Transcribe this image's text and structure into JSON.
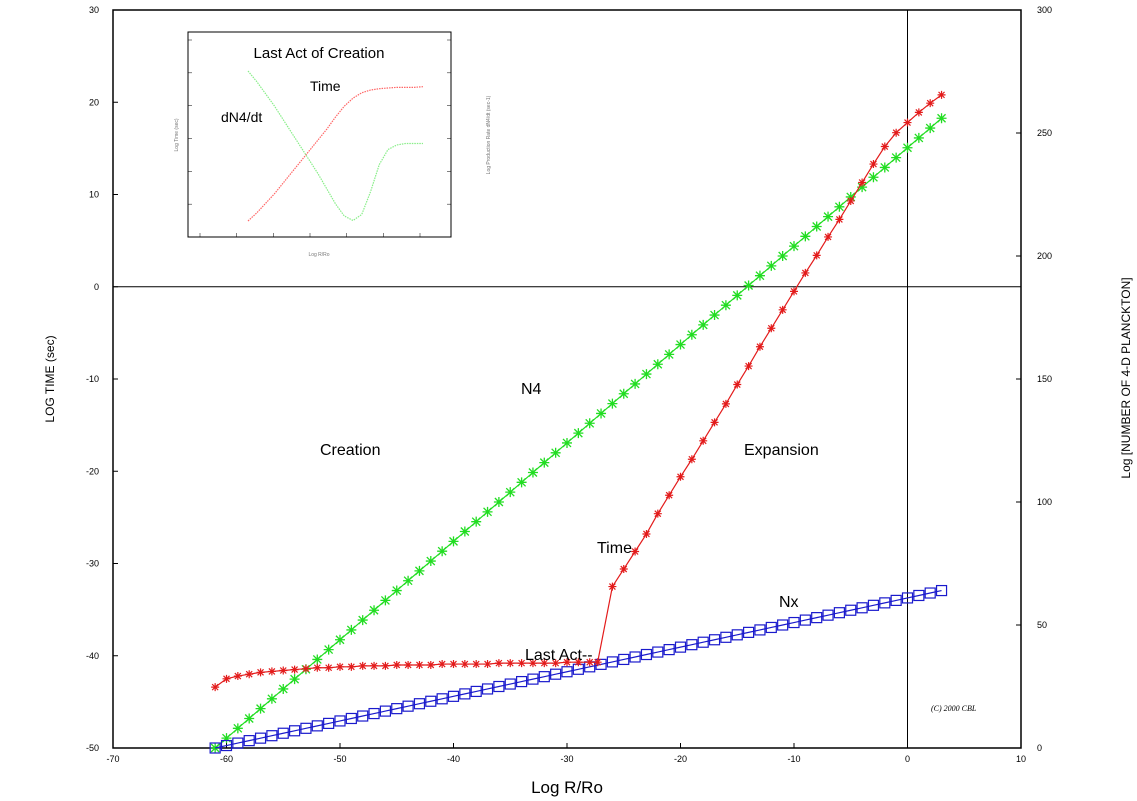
{
  "chart_data": {
    "type": "line",
    "xlabel": "Log R/Ro",
    "ylabel": "LOG TIME (sec)",
    "y2label": "Log [NUMBER OF 4-D PLANCKTON]",
    "xlim": [
      -70,
      10
    ],
    "ylim": [
      -50,
      30
    ],
    "y2lim": [
      0,
      300
    ],
    "xticks": [
      "-70",
      "-60",
      "-50",
      "-40",
      "-30",
      "-20",
      "-10",
      "0",
      "10"
    ],
    "yticks": [
      "-50",
      "-40",
      "-30",
      "-20",
      "-10",
      "0",
      "10",
      "20",
      "30"
    ],
    "y2ticks": [
      "0",
      "50",
      "100",
      "150",
      "200",
      "250",
      "300"
    ],
    "reference_lines": {
      "x": 0,
      "y": 0
    },
    "annotations": {
      "creation": "Creation",
      "expansion": "Expansion",
      "n4": "N4",
      "time": "Time",
      "nx": "Nx",
      "last_act": "Last Act--",
      "copyright": "(C) 2000 CBL"
    },
    "series": [
      {
        "name": "Time",
        "axis": "left",
        "color": "#e31b1b",
        "marker": "asterisk",
        "x": [
          -61,
          -60,
          -59,
          -58,
          -57,
          -56,
          -55,
          -54,
          -53,
          -52,
          -51,
          -50,
          -49,
          -48,
          -47,
          -46,
          -45,
          -44,
          -43,
          -42,
          -41,
          -40,
          -39,
          -38,
          -37,
          -36,
          -35,
          -34,
          -33,
          -32,
          -31,
          -30,
          -29,
          -28,
          -27.3,
          -26,
          -25,
          -24,
          -23,
          -22,
          -21,
          -20,
          -19,
          -18,
          -17,
          -16,
          -15,
          -14,
          -13,
          -12,
          -11,
          -10,
          -9,
          -8,
          -7,
          -6,
          -5,
          -4,
          -3,
          -2,
          -1,
          0,
          1,
          2,
          3
        ],
        "y": [
          -43.4,
          -42.5,
          -42.2,
          -42.0,
          -41.8,
          -41.7,
          -41.6,
          -41.5,
          -41.4,
          -41.3,
          -41.3,
          -41.2,
          -41.2,
          -41.1,
          -41.1,
          -41.1,
          -41.0,
          -41.0,
          -41.0,
          -41.0,
          -40.9,
          -40.9,
          -40.9,
          -40.9,
          -40.9,
          -40.8,
          -40.8,
          -40.8,
          -40.8,
          -40.8,
          -40.8,
          -40.7,
          -40.7,
          -40.7,
          -40.7,
          -32.5,
          -30.6,
          -28.7,
          -26.8,
          -24.6,
          -22.6,
          -20.6,
          -18.7,
          -16.7,
          -14.7,
          -12.7,
          -10.6,
          -8.6,
          -6.5,
          -4.5,
          -2.5,
          -0.5,
          1.5,
          3.4,
          5.4,
          7.3,
          9.3,
          11.3,
          13.3,
          15.2,
          16.7,
          17.8,
          18.9,
          19.9,
          20.8
        ]
      },
      {
        "name": "N4",
        "axis": "right",
        "color": "#22dd22",
        "marker": "cross",
        "x": [
          -61,
          -60,
          -59,
          -58,
          -57,
          -56,
          -55,
          -54,
          -53,
          -52,
          -51,
          -50,
          -49,
          -48,
          -47,
          -46,
          -45,
          -44,
          -43,
          -42,
          -41,
          -40,
          -39,
          -38,
          -37,
          -36,
          -35,
          -34,
          -33,
          -32,
          -31,
          -30,
          -29,
          -28,
          -27,
          -26,
          -25,
          -24,
          -23,
          -22,
          -21,
          -20,
          -19,
          -18,
          -17,
          -16,
          -15,
          -14,
          -13,
          -12,
          -11,
          -10,
          -9,
          -8,
          -7,
          -6,
          -5,
          -4,
          -3,
          -2,
          -1,
          0,
          1,
          2,
          3
        ],
        "y": [
          0.0,
          4.0,
          8.0,
          12.0,
          16.0,
          20.0,
          24.0,
          28.0,
          32.0,
          36.0,
          40.0,
          44.0,
          48.0,
          52.0,
          56.0,
          60.0,
          64.0,
          68.0,
          72.0,
          76.0,
          80.0,
          84.0,
          88.0,
          92.0,
          96.0,
          100.0,
          104.0,
          108.0,
          112.0,
          116.0,
          120.0,
          124.0,
          128.0,
          132.0,
          136.0,
          140.0,
          144.0,
          148.0,
          152.0,
          156.0,
          160.0,
          164.0,
          168.0,
          172.0,
          176.0,
          180.0,
          184.0,
          188.0,
          192.0,
          196.0,
          200.0,
          204.0,
          208.0,
          212.0,
          216.0,
          220.0,
          224.0,
          228.0,
          232.0,
          236.0,
          240.0,
          244.0,
          248.0,
          252.0,
          256.0
        ]
      },
      {
        "name": "Nx",
        "axis": "right",
        "color": "#1a1acc",
        "marker": "square",
        "x": [
          -61,
          -60,
          -59,
          -58,
          -57,
          -56,
          -55,
          -54,
          -53,
          -52,
          -51,
          -50,
          -49,
          -48,
          -47,
          -46,
          -45,
          -44,
          -43,
          -42,
          -41,
          -40,
          -39,
          -38,
          -37,
          -36,
          -35,
          -34,
          -33,
          -32,
          -31,
          -30,
          -29,
          -28,
          -27,
          -26,
          -25,
          -24,
          -23,
          -22,
          -21,
          -20,
          -19,
          -18,
          -17,
          -16,
          -15,
          -14,
          -13,
          -12,
          -11,
          -10,
          -9,
          -8,
          -7,
          -6,
          -5,
          -4,
          -3,
          -2,
          -1,
          0,
          1,
          2,
          3
        ],
        "y": [
          0.0,
          1.0,
          2.0,
          3.0,
          4.0,
          5.0,
          6.0,
          7.0,
          8.0,
          9.0,
          10.0,
          11.0,
          12.0,
          13.0,
          14.0,
          15.0,
          16.0,
          17.0,
          18.0,
          19.0,
          20.0,
          21.0,
          22.0,
          23.0,
          24.0,
          25.0,
          26.0,
          27.0,
          28.0,
          29.0,
          30.0,
          31.0,
          32.0,
          33.0,
          34.0,
          35.0,
          36.0,
          37.0,
          38.0,
          39.0,
          40.0,
          41.0,
          42.0,
          43.0,
          44.0,
          45.0,
          46.0,
          47.0,
          48.0,
          49.0,
          50.0,
          51.0,
          52.0,
          53.0,
          54.0,
          55.0,
          56.0,
          57.0,
          58.0,
          59.0,
          60.0,
          61.0,
          62.0,
          63.0,
          64.0
        ]
      }
    ],
    "inset": {
      "title": "Last Act of Creation",
      "time_label": "Time",
      "rate_label": "dN4/dt",
      "xlabel": "Log R/Ro",
      "ylabel_left": "Log Time (sec)",
      "ylabel_right": "Log Production Rate dN4/dt (sec-1)",
      "time_series": {
        "name": "Time",
        "color": "#ff6666",
        "x": [
          0.0,
          0.05,
          0.1,
          0.15,
          0.2,
          0.25,
          0.3,
          0.35,
          0.4,
          0.45,
          0.5,
          0.55,
          0.6,
          0.65,
          0.7,
          0.75,
          0.8,
          0.85,
          0.9,
          0.95,
          1.0
        ],
        "y": [
          0.0,
          0.06,
          0.13,
          0.2,
          0.28,
          0.36,
          0.44,
          0.52,
          0.6,
          0.68,
          0.77,
          0.85,
          0.91,
          0.95,
          0.97,
          0.98,
          0.985,
          0.99,
          0.99,
          0.99,
          0.995
        ]
      },
      "rate_series": {
        "name": "dN4/dt",
        "color": "#88ee88",
        "x": [
          0.0,
          0.05,
          0.1,
          0.15,
          0.2,
          0.25,
          0.3,
          0.35,
          0.4,
          0.45,
          0.5,
          0.55,
          0.6,
          0.65,
          0.7,
          0.75,
          0.8,
          0.85,
          0.9,
          0.95,
          1.0
        ],
        "y": [
          1.0,
          0.93,
          0.85,
          0.77,
          0.68,
          0.59,
          0.5,
          0.41,
          0.32,
          0.22,
          0.12,
          0.04,
          0.01,
          0.05,
          0.2,
          0.38,
          0.48,
          0.51,
          0.52,
          0.52,
          0.52
        ]
      }
    }
  }
}
